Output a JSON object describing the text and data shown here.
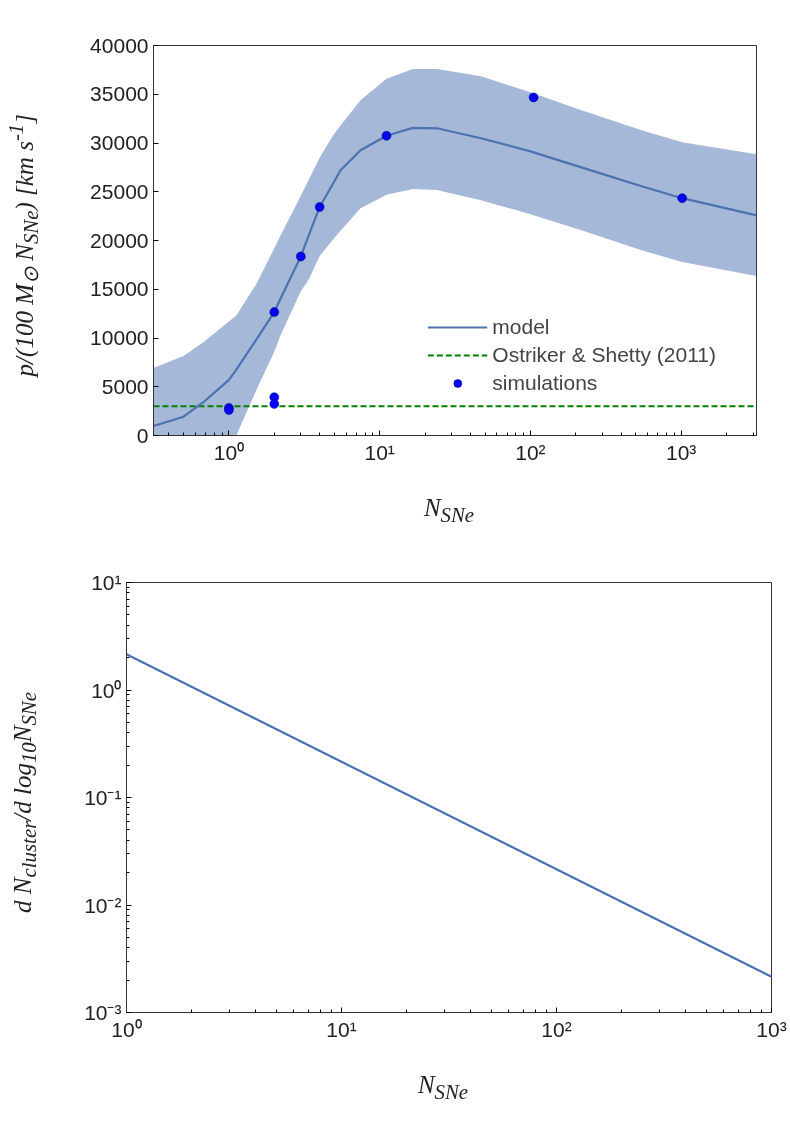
{
  "chart_data": [
    {
      "type": "line",
      "xlabel": "N$_{SNe}$",
      "ylabel": "p/(100 M$_{⊙}$ N$_{SNe}$) [km s$^{-1}$]",
      "log": "x",
      "xlim": [
        0.316,
        3162
      ],
      "xticks": [
        {
          "value": 1,
          "label": "10⁰"
        },
        {
          "value": 10,
          "label": "10¹"
        },
        {
          "value": 100,
          "label": "10²"
        },
        {
          "value": 1000,
          "label": "10³"
        }
      ],
      "ylim": [
        0,
        40000
      ],
      "yticks": [
        0,
        5000,
        10000,
        15000,
        20000,
        25000,
        30000,
        35000,
        40000
      ],
      "grid": false,
      "legend": "bottom right",
      "series": [
        {
          "name": "model",
          "color": "#4c72b0",
          "x": [
            0.316,
            0.5,
            0.68,
            1.0,
            1.12,
            1.52,
            2,
            2.19,
            3,
            3.37,
            4,
            4.87,
            5.5,
            7.47,
            11.1,
            16.6,
            24,
            47,
            100,
            218,
            547,
            1016,
            3162
          ],
          "values": [
            980,
            1930,
            3440,
            5700,
            6760,
            9840,
            12660,
            13980,
            18360,
            20450,
            23440,
            25750,
            27210,
            29260,
            30740,
            31550,
            31510,
            30490,
            29140,
            27500,
            25570,
            24340,
            22580
          ],
          "upper": [
            6930,
            8160,
            9600,
            11700,
            12300,
            15530,
            19200,
            20450,
            24600,
            26190,
            28500,
            30700,
            31800,
            34380,
            36600,
            37580,
            37580,
            36840,
            35200,
            33360,
            31310,
            30080,
            28850
          ],
          "lower": [
            0,
            0,
            0,
            0,
            0,
            4670,
            8600,
            10200,
            14800,
            15940,
            18400,
            20040,
            21000,
            23320,
            24700,
            25280,
            25180,
            24140,
            22700,
            21060,
            19010,
            17790,
            16350
          ]
        },
        {
          "name": "simulations",
          "type": "scatter",
          "marker": "circle",
          "color": "#0000ff",
          "x": [
            1,
            1,
            2,
            2,
            2,
            3,
            4,
            11.1,
            105,
            1016
          ],
          "values": [
            2830,
            2620,
            12660,
            3930,
            3240,
            18360,
            23440,
            30740,
            34670,
            24340
          ]
        }
      ],
      "ref_lines": [
        {
          "axis": "y",
          "value": 3000,
          "label": "Ostriker & Shetty (2011)",
          "color": "#008000",
          "line_style": "dashed"
        }
      ]
    },
    {
      "type": "line",
      "xlabel": "N$_{SNe}$",
      "ylabel": "d N$_{cluster}$/d log$_{10}$N$_{SNe}$",
      "log": "xy",
      "xlim": [
        1,
        1000
      ],
      "xticks": [
        {
          "value": 1,
          "label": "10⁰"
        },
        {
          "value": 10,
          "label": "10¹"
        },
        {
          "value": 100,
          "label": "10²"
        },
        {
          "value": 1000,
          "label": "10³"
        }
      ],
      "ylim": [
        0.001,
        10
      ],
      "yticks": [
        {
          "value": 0.001,
          "label": "10⁻³"
        },
        {
          "value": 0.01,
          "label": "10⁻²"
        },
        {
          "value": 0.1,
          "label": "10⁻¹"
        },
        {
          "value": 1,
          "label": "10⁰"
        },
        {
          "value": 10,
          "label": "10¹"
        }
      ],
      "grid": false,
      "series": [
        {
          "color": "#4c72b0",
          "x": [
            1,
            10,
            100,
            1000
          ],
          "values": [
            2.15,
            0.215,
            0.0215,
            0.00215
          ]
        }
      ]
    }
  ]
}
